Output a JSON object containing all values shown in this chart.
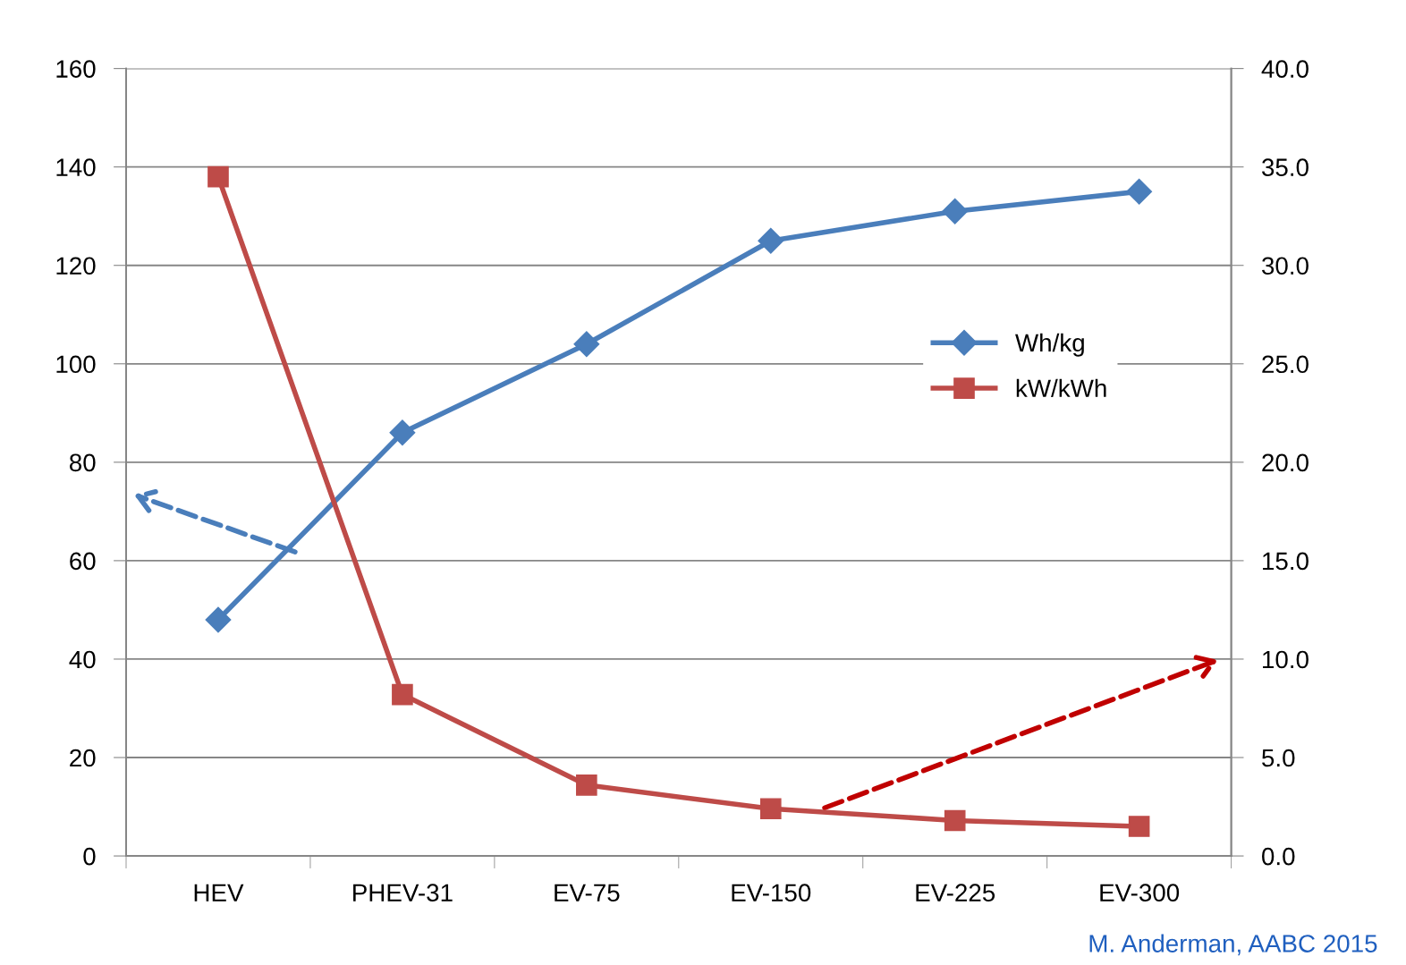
{
  "chart_data": {
    "type": "line",
    "categories": [
      "HEV",
      "PHEV-31",
      "EV-75",
      "EV-150",
      "EV-225",
      "EV-300"
    ],
    "series": [
      {
        "name": "Wh/kg",
        "color": "#4a7ebb",
        "values": [
          48,
          86,
          104,
          125,
          131,
          135
        ],
        "marker": "diamond"
      },
      {
        "name": "kW/kWh",
        "color": "#be4b48",
        "values": [
          34.5,
          8.2,
          3.6,
          2.4,
          1.8,
          1.5
        ],
        "marker": "square",
        "axis": "y2"
      }
    ],
    "ylim": [
      0,
      160
    ],
    "yticks": [
      0,
      20,
      40,
      60,
      80,
      100,
      120,
      140,
      160
    ],
    "y2lim": [
      0,
      40
    ],
    "y2ticks": [
      {
        "value": 0,
        "label": "0.0"
      },
      {
        "value": 5,
        "label": "5.0"
      },
      {
        "value": 10,
        "label": "10.0"
      },
      {
        "value": 15,
        "label": "15.0"
      },
      {
        "value": 20,
        "label": "20.0"
      },
      {
        "value": 25,
        "label": "25.0"
      },
      {
        "value": 30,
        "label": "30.0"
      },
      {
        "value": 35,
        "label": "35.0"
      },
      {
        "value": 40,
        "label": "40.0"
      }
    ],
    "grid": "y",
    "legend": "right",
    "line_style": "solid",
    "annotations": [
      "M. Anderman, AABC 2015"
    ]
  }
}
